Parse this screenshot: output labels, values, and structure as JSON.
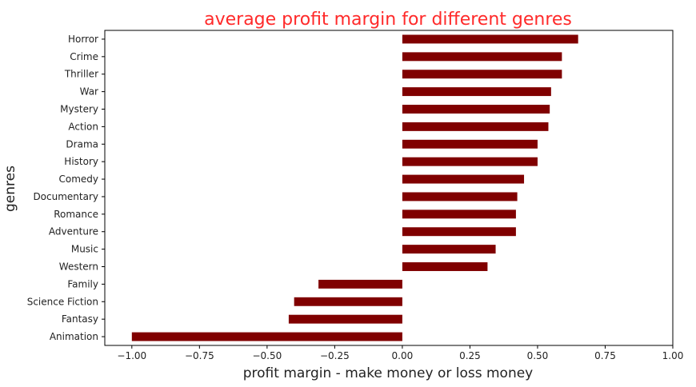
{
  "chart_data": {
    "type": "bar",
    "orientation": "horizontal",
    "title": "average profit margin for different genres",
    "xlabel": "profit margin - make money or loss money",
    "ylabel": "genres",
    "xlim": [
      -1.1,
      1.0
    ],
    "xticks": [
      -1.0,
      -0.75,
      -0.5,
      -0.25,
      0.0,
      0.25,
      0.5,
      0.75,
      1.0
    ],
    "xtick_labels": [
      "−1.00",
      "−0.75",
      "−0.50",
      "−0.25",
      "0.00",
      "0.25",
      "0.50",
      "0.75",
      "1.00"
    ],
    "categories": [
      "Horror",
      "Crime",
      "Thriller",
      "War",
      "Mystery",
      "Action",
      "Drama",
      "History",
      "Comedy",
      "Documentary",
      "Romance",
      "Adventure",
      "Music",
      "Western",
      "Family",
      "Science Fiction",
      "Fantasy",
      "Animation"
    ],
    "values": [
      0.65,
      0.59,
      0.59,
      0.55,
      0.545,
      0.54,
      0.5,
      0.5,
      0.45,
      0.425,
      0.42,
      0.42,
      0.345,
      0.315,
      -0.31,
      -0.4,
      -0.42,
      -1.0
    ],
    "bar_color": "#800000",
    "grid": false
  }
}
